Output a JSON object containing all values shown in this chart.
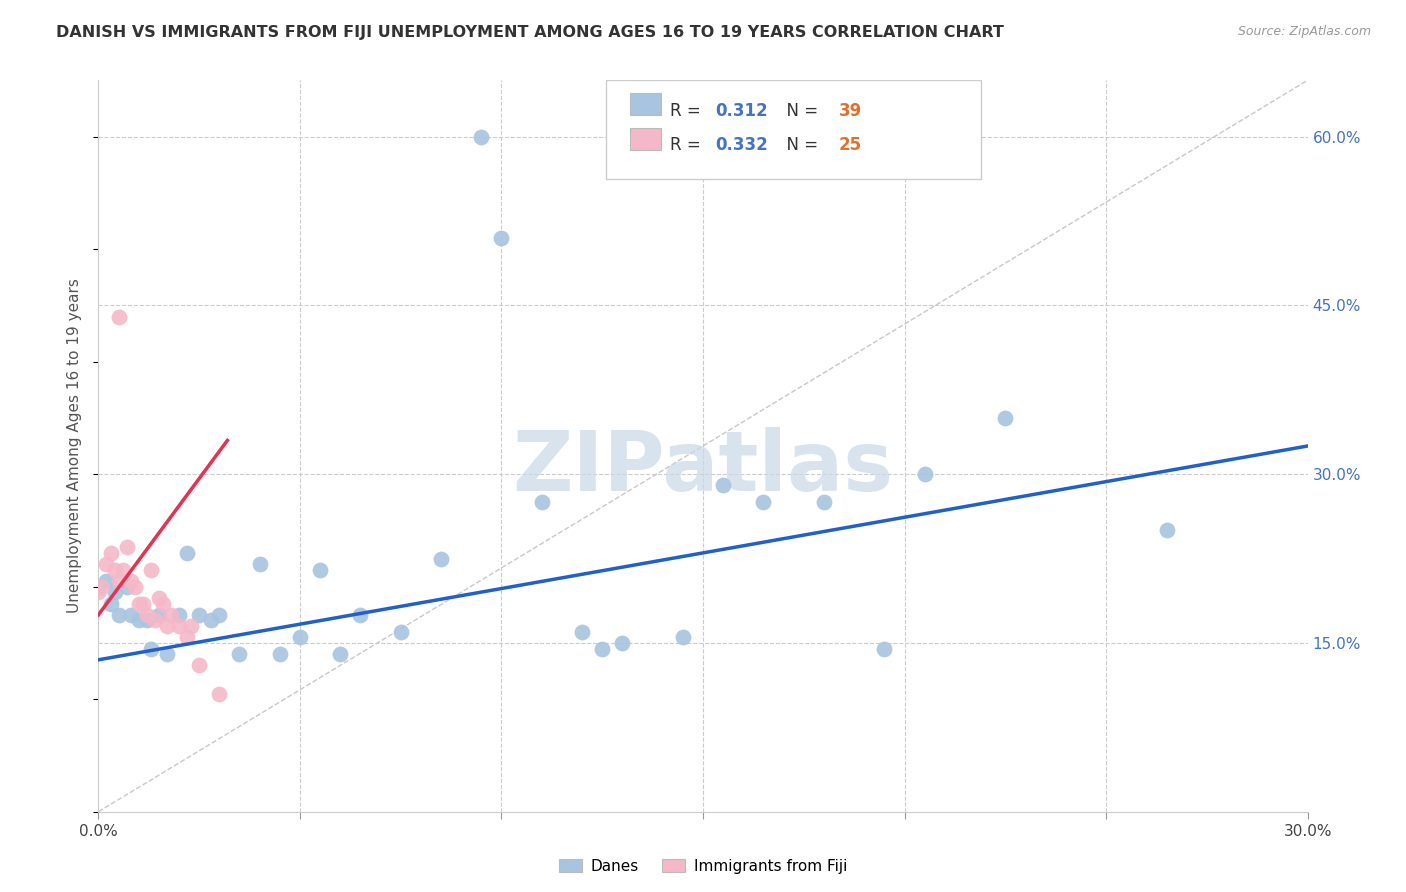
{
  "title": "DANISH VS IMMIGRANTS FROM FIJI UNEMPLOYMENT AMONG AGES 16 TO 19 YEARS CORRELATION CHART",
  "source": "Source: ZipAtlas.com",
  "ylabel": "Unemployment Among Ages 16 to 19 years",
  "xlim": [
    0.0,
    0.3
  ],
  "ylim": [
    0.0,
    0.65
  ],
  "yticks": [
    0.0,
    0.15,
    0.3,
    0.45,
    0.6
  ],
  "ytick_labels_right": [
    "",
    "15.0%",
    "30.0%",
    "45.0%",
    "60.0%"
  ],
  "xticks": [
    0.0,
    0.05,
    0.1,
    0.15,
    0.2,
    0.25,
    0.3
  ],
  "xtick_labels": [
    "0.0%",
    "",
    "",
    "",
    "",
    "",
    "30.0%"
  ],
  "legend_blue_r": "0.312",
  "legend_blue_n": "39",
  "legend_pink_r": "0.332",
  "legend_pink_n": "25",
  "blue_scatter_color": "#a8c4e0",
  "pink_scatter_color": "#f4b8c8",
  "blue_line_color": "#2060c8",
  "pink_line_color": "#e83050",
  "ref_line_color": "#c8c8c8",
  "watermark": "ZIPatlas",
  "watermark_color": "#c8d8e8",
  "danes_x": [
    0.002,
    0.003,
    0.004,
    0.005,
    0.007,
    0.008,
    0.01,
    0.012,
    0.013,
    0.015,
    0.017,
    0.02,
    0.022,
    0.025,
    0.028,
    0.03,
    0.035,
    0.04,
    0.045,
    0.05,
    0.055,
    0.06,
    0.065,
    0.075,
    0.085,
    0.095,
    0.1,
    0.11,
    0.12,
    0.125,
    0.13,
    0.145,
    0.155,
    0.165,
    0.18,
    0.195,
    0.205,
    0.225,
    0.265
  ],
  "danes_y": [
    0.205,
    0.185,
    0.195,
    0.175,
    0.2,
    0.175,
    0.17,
    0.17,
    0.145,
    0.175,
    0.14,
    0.175,
    0.23,
    0.175,
    0.17,
    0.175,
    0.14,
    0.22,
    0.14,
    0.155,
    0.215,
    0.14,
    0.175,
    0.16,
    0.225,
    0.6,
    0.51,
    0.275,
    0.16,
    0.145,
    0.15,
    0.155,
    0.29,
    0.275,
    0.275,
    0.145,
    0.3,
    0.35,
    0.25
  ],
  "fiji_x": [
    0.0,
    0.001,
    0.002,
    0.003,
    0.004,
    0.005,
    0.006,
    0.007,
    0.008,
    0.009,
    0.01,
    0.011,
    0.012,
    0.013,
    0.014,
    0.015,
    0.016,
    0.017,
    0.018,
    0.02,
    0.022,
    0.023,
    0.025,
    0.03,
    0.005
  ],
  "fiji_y": [
    0.195,
    0.2,
    0.22,
    0.23,
    0.215,
    0.205,
    0.215,
    0.235,
    0.205,
    0.2,
    0.185,
    0.185,
    0.175,
    0.215,
    0.17,
    0.19,
    0.185,
    0.165,
    0.175,
    0.165,
    0.155,
    0.165,
    0.13,
    0.105,
    0.44
  ],
  "ref_line_x1": 0.0,
  "ref_line_y1": 0.0,
  "ref_line_x2": 0.3,
  "ref_line_y2": 0.65,
  "blue_line_x": [
    0.0,
    0.3
  ],
  "blue_line_y": [
    0.135,
    0.325
  ],
  "fiji_line_x": [
    0.0,
    0.032
  ],
  "fiji_line_y": [
    0.175,
    0.33
  ]
}
